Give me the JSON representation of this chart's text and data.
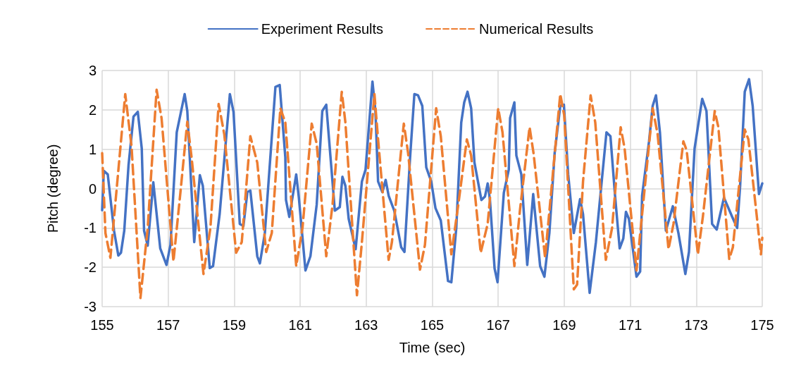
{
  "chart_data": {
    "type": "line",
    "xlabel": "Time (sec)",
    "ylabel": "Pitch (degree)",
    "xlim": [
      155,
      175
    ],
    "xticks": [
      155,
      157,
      159,
      161,
      163,
      165,
      167,
      169,
      171,
      173,
      175
    ],
    "ylim": [
      -3,
      3
    ],
    "yticks": [
      -3,
      -2,
      -1,
      0,
      1,
      2,
      3
    ],
    "grid": true,
    "legend": "top",
    "marker": "none",
    "series": [
      {
        "name": "Experiment Results",
        "color": "#4472c4",
        "line_style": "solid",
        "x": [
          155,
          155.05,
          155.17,
          155.36,
          155.49,
          155.57,
          155.67,
          155.8,
          155.95,
          156.08,
          156.2,
          156.27,
          156.38,
          156.55,
          156.76,
          156.95,
          157.07,
          157.26,
          157.5,
          157.58,
          157.79,
          157.96,
          158.05,
          158.26,
          158.36,
          158.56,
          158.87,
          158.98,
          159.17,
          159.28,
          159.4,
          159.49,
          159.7,
          159.78,
          159.93,
          160.25,
          160.38,
          160.55,
          160.57,
          160.67,
          160.88,
          160.96,
          161.16,
          161.31,
          161.5,
          161.67,
          161.79,
          162.05,
          162.2,
          162.28,
          162.37,
          162.47,
          162.68,
          162.87,
          162.98,
          163.19,
          163.28,
          163.36,
          163.49,
          163.59,
          163.68,
          163.85,
          164.06,
          164.16,
          164.33,
          164.46,
          164.57,
          164.7,
          164.82,
          164.97,
          165.1,
          165.26,
          165.48,
          165.58,
          165.73,
          165.88,
          165.97,
          166.07,
          166.18,
          166.28,
          166.49,
          166.6,
          166.68,
          166.75,
          166.89,
          166.98,
          167.17,
          167.32,
          167.36,
          167.49,
          167.55,
          167.7,
          167.88,
          168.06,
          168.27,
          168.4,
          168.55,
          168.71,
          168.88,
          168.99,
          169.12,
          169.29,
          169.48,
          169.57,
          169.77,
          169.96,
          170.13,
          170.28,
          170.4,
          170.54,
          170.68,
          170.79,
          170.87,
          170.96,
          171.19,
          171.3,
          171.36,
          171.57,
          171.68,
          171.78,
          171.9,
          172.08,
          172.29,
          172.46,
          172.67,
          172.78,
          172.95,
          173.18,
          173.31,
          173.48,
          173.62,
          173.84,
          174.09,
          174.24,
          174.33,
          174.47,
          174.6,
          174.71,
          174.9,
          175
        ],
        "values": [
          -0.55,
          0.45,
          0.36,
          -1.07,
          -1.7,
          -1.63,
          -1.07,
          0.6,
          1.83,
          1.95,
          1.02,
          -1.07,
          -1.45,
          0.16,
          -1.52,
          -1.94,
          -1.43,
          1.43,
          2.4,
          1.97,
          -1.36,
          0.34,
          0.07,
          -2.02,
          -1.97,
          -0.65,
          2.4,
          1.95,
          -0.9,
          -0.95,
          -0.09,
          -0.05,
          -1.72,
          -1.9,
          -1.13,
          2.58,
          2.63,
          0.79,
          -0.29,
          -0.72,
          0.36,
          -0.23,
          -2.08,
          -1.72,
          -0.41,
          1.97,
          2.13,
          -0.56,
          -0.47,
          0.3,
          0.07,
          -0.77,
          -1.54,
          0.18,
          0.48,
          2.72,
          1.97,
          0.18,
          -0.09,
          0.22,
          -0.18,
          -0.56,
          -1.49,
          -1.61,
          0.79,
          2.4,
          2.37,
          2.1,
          0.54,
          0.18,
          -0.5,
          -0.81,
          -2.35,
          -2.38,
          -1.0,
          1.68,
          2.19,
          2.46,
          2.04,
          0.66,
          -0.29,
          -0.2,
          0.13,
          -0.29,
          -2.03,
          -2.38,
          -0.11,
          0.48,
          1.79,
          2.19,
          0.84,
          0.36,
          -1.94,
          -0.14,
          -1.97,
          -2.24,
          -1.13,
          0.9,
          2.1,
          2.13,
          0.36,
          -1.13,
          -0.27,
          -0.65,
          -2.65,
          -1.36,
          0.13,
          1.43,
          1.33,
          -0.18,
          -1.52,
          -1.27,
          -0.59,
          -0.77,
          -2.24,
          -2.11,
          -0.18,
          1.2,
          2.1,
          2.37,
          1.43,
          -1.07,
          -0.45,
          -1.13,
          -2.17,
          -1.61,
          1.02,
          2.28,
          1.97,
          -0.9,
          -1.04,
          -0.23,
          -0.72,
          -1.0,
          0.07,
          2.46,
          2.78,
          2.1,
          -0.14,
          0.13
        ]
      },
      {
        "name": "Numerical Results",
        "color": "#ed7d31",
        "line_style": "dashed",
        "x": [
          155,
          155.1,
          155.25,
          155.46,
          155.7,
          155.89,
          156.16,
          156.38,
          156.65,
          156.8,
          157.16,
          157.37,
          157.58,
          157.71,
          158.07,
          158.28,
          158.53,
          158.7,
          159.06,
          159.23,
          159.49,
          159.7,
          159.97,
          160.14,
          160.4,
          160.55,
          160.88,
          161.07,
          161.35,
          161.5,
          161.79,
          161.98,
          162.26,
          162.37,
          162.72,
          162.87,
          163.25,
          163.36,
          163.68,
          163.78,
          164.14,
          164.27,
          164.63,
          164.78,
          165.12,
          165.26,
          165.58,
          165.79,
          166.05,
          166.18,
          166.47,
          166.68,
          167.0,
          167.13,
          167.49,
          167.66,
          167.95,
          168.07,
          168.42,
          168.88,
          169.0,
          169.29,
          169.39,
          169.57,
          169.8,
          169.94,
          170.26,
          170.45,
          170.71,
          170.83,
          171.19,
          171.68,
          171.83,
          172.16,
          172.31,
          172.61,
          172.71,
          173.05,
          173.2,
          173.56,
          173.67,
          174.0,
          174.11,
          174.47,
          174.58,
          174.96,
          175
        ],
        "values": [
          0.9,
          -1.13,
          -1.76,
          0.18,
          2.4,
          1.08,
          -2.78,
          -1.0,
          2.51,
          1.79,
          -1.85,
          -0.11,
          1.7,
          0.79,
          -2.17,
          -1.0,
          2.15,
          1.38,
          -1.63,
          -1.36,
          1.33,
          0.66,
          -1.61,
          -1.13,
          2.04,
          1.68,
          -1.97,
          -1.0,
          1.65,
          1.14,
          -1.72,
          -0.41,
          2.46,
          1.68,
          -2.71,
          -1.36,
          2.4,
          1.25,
          -1.81,
          -1.36,
          1.65,
          0.9,
          -2.06,
          -1.43,
          2.04,
          1.33,
          -1.67,
          -0.41,
          1.25,
          0.84,
          -1.63,
          -0.9,
          2.04,
          1.43,
          -1.97,
          -0.54,
          1.56,
          0.9,
          -1.75,
          2.4,
          1.86,
          -2.56,
          -2.44,
          0.18,
          2.37,
          1.68,
          -1.81,
          -1.0,
          1.56,
          1.02,
          -2.08,
          2.04,
          1.38,
          -1.54,
          -0.9,
          1.2,
          0.97,
          -1.67,
          -0.72,
          1.97,
          1.56,
          -1.79,
          -1.49,
          1.5,
          1.25,
          -1.67,
          -1.25
        ]
      }
    ]
  }
}
